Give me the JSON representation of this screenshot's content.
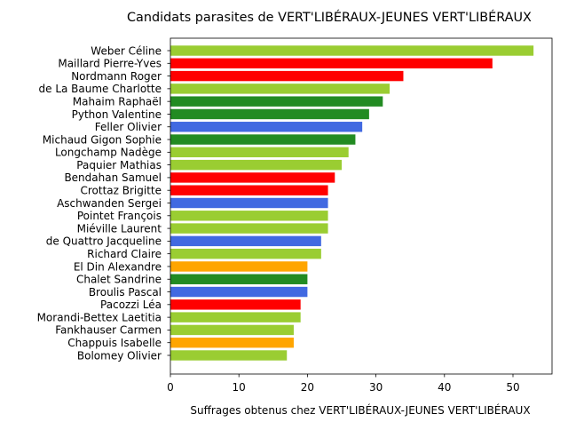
{
  "chart_data": {
    "type": "bar",
    "orientation": "horizontal",
    "title": "Candidats parasites de VERT'LIBÉRAUX-JEUNES VERT'LIBÉRAUX",
    "xlabel": "Suffrages obtenus chez VERT'LIBÉRAUX-JEUNES VERT'LIBÉRAUX",
    "ylabel": "",
    "xlim": [
      0,
      55.7
    ],
    "xticks": [
      0,
      10,
      20,
      30,
      40,
      50
    ],
    "grid": false,
    "categories": [
      "Weber Céline",
      "Maillard Pierre-Yves",
      "Nordmann Roger",
      "de La Baume Charlotte",
      "Mahaim Raphaël",
      "Python Valentine",
      "Feller Olivier",
      "Michaud Gigon Sophie",
      "Longchamp Nadège",
      "Paquier Mathias",
      "Bendahan Samuel",
      "Crottaz Brigitte",
      "Aschwanden Sergei",
      "Pointet François",
      "Miéville Laurent",
      "de Quattro Jacqueline",
      "Richard Claire",
      "El Din Alexandre",
      "Chalet Sandrine",
      "Broulis Pascal",
      "Pacozzi Léa",
      "Morandi-Bettex Laetitia",
      "Fankhauser Carmen",
      "Chappuis Isabelle",
      "Bolomey Olivier"
    ],
    "values": [
      53,
      47,
      34,
      32,
      31,
      29,
      28,
      27,
      26,
      25,
      24,
      23,
      23,
      23,
      23,
      22,
      22,
      20,
      20,
      20,
      19,
      19,
      18,
      18,
      17
    ],
    "colors": [
      "#9acd32",
      "#ff0000",
      "#ff0000",
      "#9acd32",
      "#228b22",
      "#228b22",
      "#4169e1",
      "#228b22",
      "#9acd32",
      "#9acd32",
      "#ff0000",
      "#ff0000",
      "#4169e1",
      "#9acd32",
      "#9acd32",
      "#4169e1",
      "#9acd32",
      "#ffa500",
      "#228b22",
      "#4169e1",
      "#ff0000",
      "#9acd32",
      "#9acd32",
      "#ffa500",
      "#9acd32"
    ]
  }
}
